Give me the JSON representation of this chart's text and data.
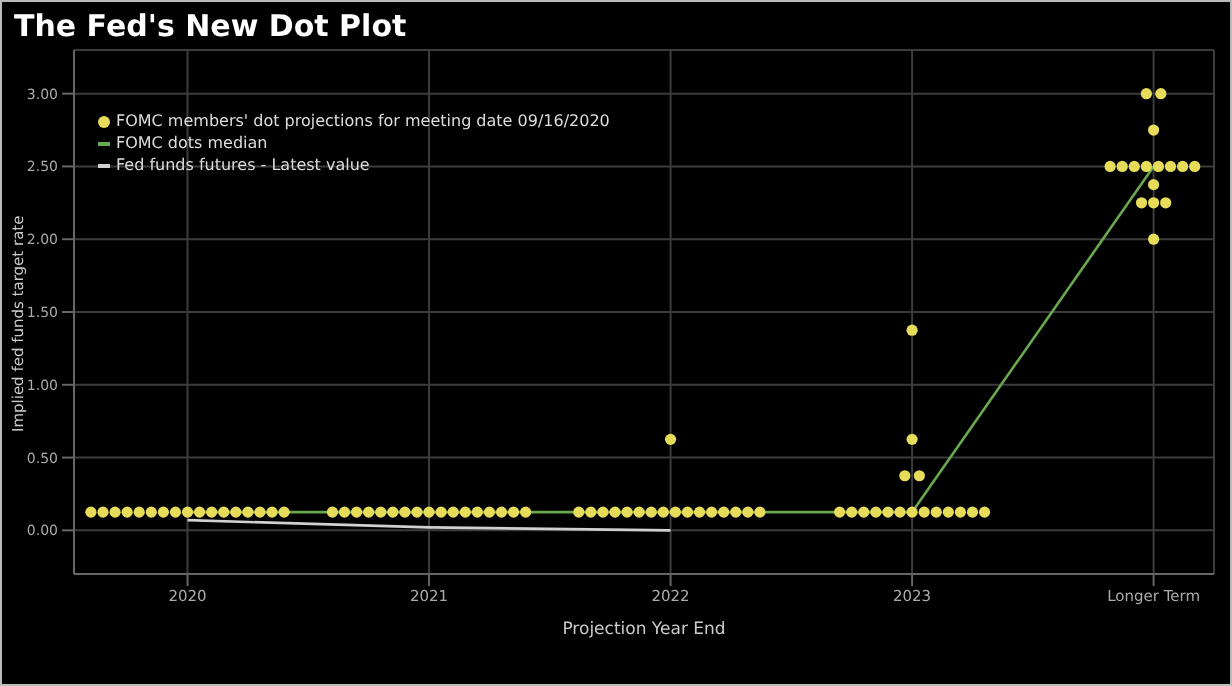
{
  "chart_data": {
    "type": "scatter",
    "title": "The Fed's New Dot Plot",
    "xlabel": "Projection Year End",
    "ylabel": "Implied fed funds target rate",
    "xlim": [
      2019.53,
      2024.25
    ],
    "xticks": [
      2020,
      2021,
      2022,
      2023,
      {
        "value": 2024,
        "label": "Longer Term"
      }
    ],
    "ylim": [
      -0.3,
      3.3
    ],
    "yticks": [
      {
        "value": 0,
        "label": "0.00"
      },
      {
        "value": 0.5,
        "label": "0.50"
      },
      {
        "value": 1,
        "label": "1.00"
      },
      {
        "value": 1.5,
        "label": "1.50"
      },
      {
        "value": 2,
        "label": "2.00"
      },
      {
        "value": 2.5,
        "label": "2.50"
      },
      {
        "value": 3,
        "label": "3.00"
      }
    ],
    "grid": true,
    "legend": "top left",
    "series": [
      {
        "name": "FOMC members' dot projections for meeting date 09/16/2020",
        "type": "scatter",
        "marker": "circle",
        "color": "#e6dc5a",
        "x": [
          2019.6,
          2019.65,
          2019.7,
          2019.75,
          2019.8,
          2019.85,
          2019.9,
          2019.95,
          2020,
          2020.05,
          2020.1,
          2020.15,
          2020.2,
          2020.25,
          2020.3,
          2020.35,
          2020.4,
          2020.6,
          2020.65,
          2020.7,
          2020.75,
          2020.8,
          2020.85,
          2020.9,
          2020.95,
          2021,
          2021.05,
          2021.1,
          2021.15,
          2021.2,
          2021.25,
          2021.3,
          2021.35,
          2021.4,
          2021.62,
          2021.67,
          2021.72,
          2021.77,
          2021.82,
          2021.87,
          2021.92,
          2021.97,
          2022.02,
          2022.07,
          2022.12,
          2022.17,
          2022.22,
          2022.27,
          2022.32,
          2022.37,
          2022,
          2022.7,
          2022.75,
          2022.8,
          2022.85,
          2022.9,
          2022.95,
          2023,
          2023.05,
          2023.1,
          2023.15,
          2023.2,
          2023.25,
          2023.3,
          2022.97,
          2023.03,
          2023,
          2023,
          2024,
          2023.95,
          2024,
          2024.05,
          2024,
          2023.82,
          2023.87,
          2023.92,
          2023.97,
          2024.02,
          2024.07,
          2024.12,
          2024.17,
          2024,
          2023.97,
          2024.03
        ],
        "values": [
          0.125,
          0.125,
          0.125,
          0.125,
          0.125,
          0.125,
          0.125,
          0.125,
          0.125,
          0.125,
          0.125,
          0.125,
          0.125,
          0.125,
          0.125,
          0.125,
          0.125,
          0.125,
          0.125,
          0.125,
          0.125,
          0.125,
          0.125,
          0.125,
          0.125,
          0.125,
          0.125,
          0.125,
          0.125,
          0.125,
          0.125,
          0.125,
          0.125,
          0.125,
          0.125,
          0.125,
          0.125,
          0.125,
          0.125,
          0.125,
          0.125,
          0.125,
          0.125,
          0.125,
          0.125,
          0.125,
          0.125,
          0.125,
          0.125,
          0.125,
          0.625,
          0.125,
          0.125,
          0.125,
          0.125,
          0.125,
          0.125,
          0.125,
          0.125,
          0.125,
          0.125,
          0.125,
          0.125,
          0.125,
          0.375,
          0.375,
          0.625,
          1.375,
          2.0,
          2.25,
          2.25,
          2.25,
          2.375,
          2.5,
          2.5,
          2.5,
          2.5,
          2.5,
          2.5,
          2.5,
          2.5,
          2.75,
          3.0,
          3.0
        ]
      },
      {
        "name": "FOMC dots median",
        "type": "line",
        "color": "#6aa84f",
        "x": [
          2020,
          2021,
          2022,
          2023,
          2024
        ],
        "values": [
          0.125,
          0.125,
          0.125,
          0.125,
          2.5
        ]
      },
      {
        "name": "Fed funds futures - Latest value",
        "type": "line",
        "color": "#d0d0d0",
        "x": [
          2020,
          2021,
          2022
        ],
        "values": [
          0.07,
          0.02,
          0.0
        ]
      }
    ]
  }
}
